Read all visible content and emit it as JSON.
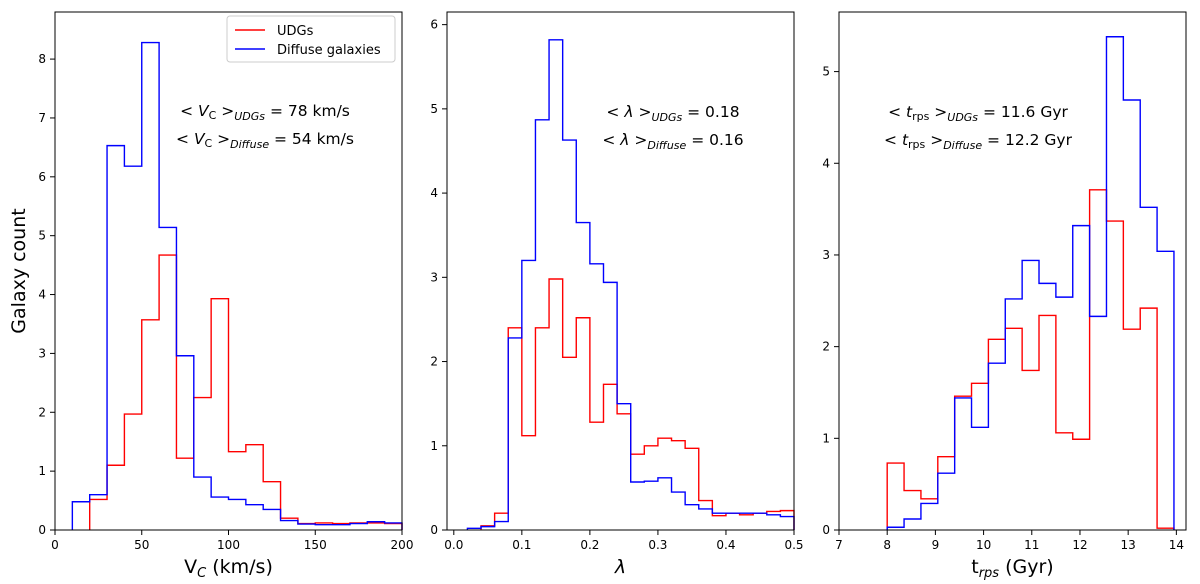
{
  "colors": {
    "udg": "#ff0000",
    "diffuse": "#0000ff",
    "axis": "#000000"
  },
  "legend": {
    "placement": "top-right of first panel",
    "entries": [
      "UDGs",
      "Diffuse galaxies"
    ]
  },
  "shared": {
    "ylabel": "Galaxy count"
  },
  "chart_data": [
    {
      "type": "histogram-step",
      "id": "vc",
      "xlabel_main": "V",
      "xlabel_sub": "C",
      "xlabel_rest": " (km/s)",
      "ylabel": "Galaxy count",
      "xlim": [
        0,
        200
      ],
      "ylim": [
        0,
        8.8
      ],
      "xticks": [
        0,
        50,
        100,
        150,
        200
      ],
      "xtick_labels": [
        "0",
        "50",
        "100",
        "150",
        "200"
      ],
      "yticks": [
        0,
        1,
        2,
        3,
        4,
        5,
        6,
        7,
        8
      ],
      "ytick_labels": [
        "0",
        "1",
        "2",
        "3",
        "4",
        "5",
        "6",
        "7",
        "8"
      ],
      "annotations": [
        {
          "lead": "< ",
          "sym": "V",
          "sub1": "C",
          "mid": " >",
          "sub2": "UDGs",
          "tail": " = 78 km/s"
        },
        {
          "lead": "< ",
          "sym": "V",
          "sub1": "C",
          "mid": " >",
          "sub2": "Diffuse",
          "tail": " = 54 km/s"
        }
      ],
      "series": [
        {
          "name": "UDGs",
          "color": "#ff0000",
          "edges": [
            20,
            30,
            40,
            50,
            60,
            70,
            80,
            90,
            100,
            110,
            120,
            130,
            140,
            150,
            160,
            170,
            180,
            190,
            200
          ],
          "values": [
            0.52,
            1.1,
            1.97,
            3.57,
            4.67,
            1.22,
            2.25,
            3.93,
            1.33,
            1.45,
            0.82,
            0.2,
            0.11,
            0.12,
            0.11,
            0.12,
            0.12,
            0.11
          ]
        },
        {
          "name": "Diffuse galaxies",
          "color": "#0000ff",
          "edges": [
            10,
            20,
            30,
            40,
            50,
            60,
            70,
            80,
            90,
            100,
            110,
            120,
            130,
            140,
            150,
            160,
            170,
            180,
            190,
            200
          ],
          "values": [
            0.48,
            0.6,
            6.53,
            6.18,
            8.28,
            5.14,
            2.96,
            0.9,
            0.56,
            0.52,
            0.43,
            0.35,
            0.16,
            0.1,
            0.09,
            0.09,
            0.11,
            0.14,
            0.12
          ]
        }
      ]
    },
    {
      "type": "histogram-step",
      "id": "lambda",
      "xlabel_main": "λ",
      "xlabel_sub": "",
      "xlabel_rest": "",
      "ylabel": "",
      "xlim": [
        -0.01,
        0.5
      ],
      "ylim": [
        0,
        6.15
      ],
      "xticks": [
        0,
        0.1,
        0.2,
        0.3,
        0.4,
        0.5
      ],
      "xtick_labels": [
        "0.0",
        "0.1",
        "0.2",
        "0.3",
        "0.4",
        "0.5"
      ],
      "yticks": [
        0,
        1,
        2,
        3,
        4,
        5,
        6
      ],
      "ytick_labels": [
        "0",
        "1",
        "2",
        "3",
        "4",
        "5",
        "6"
      ],
      "annotations": [
        {
          "lead": "< ",
          "sym": "λ",
          "sub1": "",
          "mid": " >",
          "sub2": "UDGs",
          "tail": " = 0.18"
        },
        {
          "lead": "< ",
          "sym": "λ",
          "sub1": "",
          "mid": " >",
          "sub2": "Diffuse",
          "tail": " = 0.16"
        }
      ],
      "series": [
        {
          "name": "UDGs",
          "color": "#ff0000",
          "edges": [
            0.04,
            0.06,
            0.08,
            0.1,
            0.12,
            0.14,
            0.16,
            0.18,
            0.2,
            0.22,
            0.24,
            0.26,
            0.28,
            0.3,
            0.32,
            0.34,
            0.36,
            0.38,
            0.4,
            0.42,
            0.44,
            0.46,
            0.48,
            0.5
          ],
          "values": [
            0.05,
            0.2,
            2.4,
            1.12,
            2.4,
            2.98,
            2.05,
            2.52,
            1.28,
            1.73,
            1.38,
            0.9,
            1.0,
            1.09,
            1.06,
            0.97,
            0.35,
            0.17,
            0.2,
            0.18,
            0.2,
            0.22,
            0.23
          ]
        },
        {
          "name": "Diffuse galaxies",
          "color": "#0000ff",
          "edges": [
            0.02,
            0.04,
            0.06,
            0.08,
            0.1,
            0.12,
            0.14,
            0.16,
            0.18,
            0.2,
            0.22,
            0.24,
            0.26,
            0.28,
            0.3,
            0.32,
            0.34,
            0.36,
            0.38,
            0.4,
            0.42,
            0.44,
            0.46,
            0.48,
            0.5
          ],
          "values": [
            0.02,
            0.04,
            0.1,
            2.28,
            3.2,
            4.87,
            5.82,
            4.63,
            3.65,
            3.16,
            2.94,
            1.5,
            0.57,
            0.58,
            0.62,
            0.45,
            0.3,
            0.25,
            0.2,
            0.2,
            0.2,
            0.2,
            0.18,
            0.16
          ]
        }
      ]
    },
    {
      "type": "histogram-step",
      "id": "trps",
      "xlabel_main": "t",
      "xlabel_sub": "rps",
      "xlabel_rest": " (Gyr)",
      "ylabel": "",
      "xlim": [
        7,
        14.2
      ],
      "ylim": [
        0,
        5.65
      ],
      "xticks": [
        7,
        8,
        9,
        10,
        11,
        12,
        13,
        14
      ],
      "xtick_labels": [
        "7",
        "8",
        "9",
        "10",
        "11",
        "12",
        "13",
        "14"
      ],
      "yticks": [
        0,
        1,
        2,
        3,
        4,
        5
      ],
      "ytick_labels": [
        "0",
        "1",
        "2",
        "3",
        "4",
        "5"
      ],
      "annotations": [
        {
          "lead": "< ",
          "sym": "t",
          "sub1": "rps",
          "mid": " >",
          "sub2": "UDGs",
          "tail": " = 11.6 Gyr"
        },
        {
          "lead": "< ",
          "sym": "t",
          "sub1": "rps",
          "mid": " >",
          "sub2": "Diffuse",
          "tail": " = 12.2 Gyr"
        }
      ],
      "series": [
        {
          "name": "UDGs",
          "color": "#ff0000",
          "edges": [
            8,
            8.35,
            8.7,
            9.05,
            9.4,
            9.75,
            10.1,
            10.45,
            10.8,
            11.15,
            11.5,
            11.85,
            12.2,
            12.55,
            12.9,
            13.25,
            13.6,
            13.95
          ],
          "values": [
            0.73,
            0.43,
            0.34,
            0.8,
            1.46,
            1.6,
            2.08,
            2.2,
            1.74,
            2.34,
            1.06,
            0.99,
            3.71,
            3.37,
            2.19,
            2.42,
            0.02
          ]
        },
        {
          "name": "Diffuse galaxies",
          "color": "#0000ff",
          "edges": [
            8,
            8.35,
            8.7,
            9.05,
            9.4,
            9.75,
            10.1,
            10.45,
            10.8,
            11.15,
            11.5,
            11.85,
            12.2,
            12.55,
            12.9,
            13.25,
            13.6,
            13.95
          ],
          "values": [
            0.03,
            0.12,
            0.29,
            0.62,
            1.44,
            1.12,
            1.82,
            2.52,
            2.94,
            2.69,
            2.54,
            3.32,
            2.33,
            5.38,
            4.69,
            3.52,
            3.04
          ]
        }
      ]
    }
  ]
}
